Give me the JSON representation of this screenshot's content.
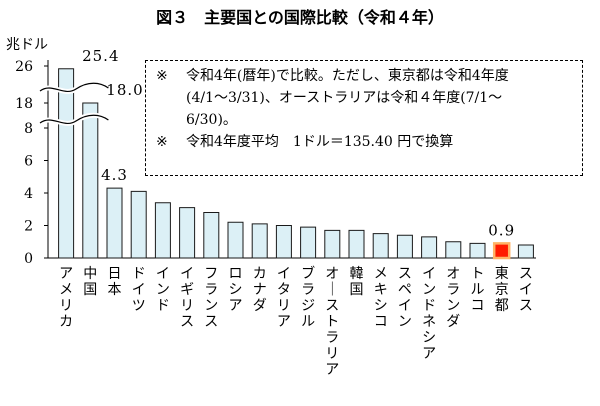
{
  "title": "図３　主要国との国際比較（令和４年）",
  "notes": [
    {
      "mark": "※",
      "lines": [
        "令和4年(暦年)で比較。ただし、東京都は令和4年度",
        "(4/1～3/31)、オーストラリアは令和４年度(7/1～",
        "6/30)。"
      ]
    },
    {
      "mark": "※",
      "lines": [
        "令和4年度平均　1ドル＝135.40 円で換算"
      ]
    }
  ],
  "colors": {
    "bar_fill": "#dcf0f6",
    "bar_stroke": "#1a1a1a",
    "highlight_fill": "#ff1a00",
    "highlight_stroke": "#ffb366"
  },
  "chart_data": {
    "type": "bar",
    "title": "図３　主要国との国際比較（令和４年）",
    "ylabel": "兆ドル",
    "xlabel": "",
    "axis_break": {
      "lower_max": 8,
      "upper_ticks": [
        18,
        26
      ]
    },
    "y_ticks": [
      0,
      2,
      4,
      6,
      8,
      18,
      26
    ],
    "y_tick_labels": [
      "0",
      "2",
      "4",
      "6",
      "8",
      "18",
      "26"
    ],
    "categories": [
      "アメリカ",
      "中国",
      "日本",
      "ドイツ",
      "インド",
      "イギリス",
      "フランス",
      "ロシア",
      "カナダ",
      "イタリア",
      "ブラジル",
      "オーストラリア",
      "韓国",
      "メキシコ",
      "スペイン",
      "インドネシア",
      "オランダ",
      "トルコ",
      "東京都",
      "スイス"
    ],
    "values": [
      25.4,
      18.0,
      4.3,
      4.1,
      3.4,
      3.1,
      2.8,
      2.2,
      2.1,
      2.0,
      1.9,
      1.7,
      1.7,
      1.5,
      1.4,
      1.3,
      1.0,
      0.9,
      0.9,
      0.8
    ],
    "data_labels": [
      {
        "index": 0,
        "text": "25.4"
      },
      {
        "index": 1,
        "text": "18.0"
      },
      {
        "index": 2,
        "text": "4.3"
      },
      {
        "index": 18,
        "text": "0.9"
      }
    ],
    "highlight_index": 18
  }
}
